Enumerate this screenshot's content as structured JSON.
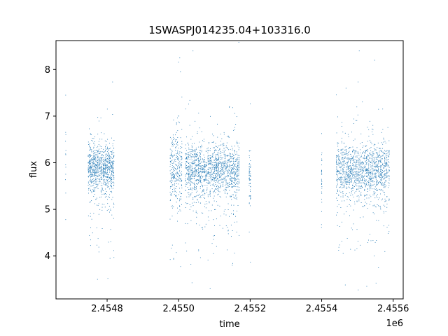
{
  "chart_data": {
    "type": "scatter",
    "title": "1SWASPJ014235.04+103316.0",
    "xlabel": "time",
    "ylabel": "flux",
    "x_offset_label": "1e6",
    "xlim": [
      2454657,
      2455628
    ],
    "ylim": [
      3.08,
      8.62
    ],
    "x_ticks": [
      2454800,
      2455000,
      2455200,
      2455400,
      2455600
    ],
    "x_tick_labels": [
      "2.4548",
      "2.4550",
      "2.4552",
      "2.4554",
      "2.4556"
    ],
    "y_ticks": [
      4,
      5,
      6,
      7,
      8
    ],
    "y_tick_labels": [
      "4",
      "5",
      "6",
      "7",
      "8"
    ],
    "grid": false,
    "marker_color": "#1f77b4",
    "series": [
      {
        "segments": [
          {
            "x_range": [
              2454683,
              2454685
            ],
            "center": 6.0,
            "spread": 0.9,
            "points": 12
          },
          {
            "x_range": [
              2454746,
              2454820
            ],
            "center": 5.9,
            "spread": 0.45,
            "points": 900
          },
          {
            "x_range": [
              2454975,
              2455010
            ],
            "center": 5.9,
            "spread": 0.7,
            "points": 300
          },
          {
            "x_range": [
              2455018,
              2455170
            ],
            "center": 5.85,
            "spread": 0.5,
            "points": 1500
          },
          {
            "x_range": [
              2455196,
              2455202
            ],
            "center": 5.8,
            "spread": 0.6,
            "points": 60
          },
          {
            "x_range": [
              2455398,
              2455402
            ],
            "center": 5.6,
            "spread": 0.6,
            "points": 30
          },
          {
            "x_range": [
              2455440,
              2455590
            ],
            "center": 5.85,
            "spread": 0.5,
            "points": 1400
          }
        ],
        "highlights": [
          {
            "x": 2455005,
            "y": 7.95
          },
          {
            "x": 2455003,
            "y": 8.25
          },
          {
            "x": 2455040,
            "y": 8.4
          },
          {
            "x": 2455505,
            "y": 8.4
          },
          {
            "x": 2455548,
            "y": 8.2
          },
          {
            "x": 2454684,
            "y": 7.45
          },
          {
            "x": 2454773,
            "y": 3.5
          },
          {
            "x": 2454802,
            "y": 3.52
          },
          {
            "x": 2455088,
            "y": 3.3
          },
          {
            "x": 2455466,
            "y": 3.38
          },
          {
            "x": 2455526,
            "y": 3.35
          },
          {
            "x": 2455552,
            "y": 3.42
          },
          {
            "x": 2454808,
            "y": 3.95
          },
          {
            "x": 2455000,
            "y": 7.0
          },
          {
            "x": 2455468,
            "y": 7.6
          }
        ]
      }
    ]
  }
}
